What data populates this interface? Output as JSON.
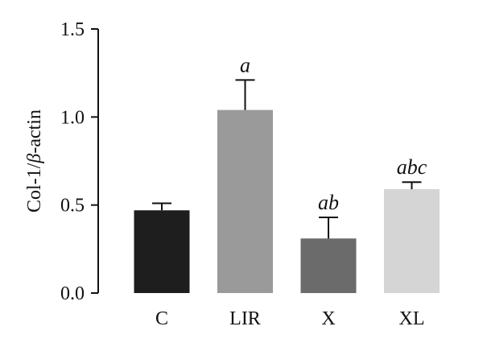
{
  "chart_data": {
    "type": "bar",
    "title": "",
    "xlabel": "",
    "ylabel_prefix": "Col-1/",
    "ylabel_symbol": "β",
    "ylabel_suffix": "-actin",
    "ylim": [
      0,
      1.5
    ],
    "yticks": [
      "0.0",
      "0.5",
      "1.0",
      "1.5"
    ],
    "ytick_values": [
      0.0,
      0.5,
      1.0,
      1.5
    ],
    "grid": false,
    "categories": [
      "C",
      "LIR",
      "X",
      "XL"
    ],
    "values": [
      0.47,
      1.04,
      0.31,
      0.59
    ],
    "errors": [
      0.04,
      0.17,
      0.12,
      0.04
    ],
    "significance": [
      "",
      "a",
      "ab",
      "abc"
    ],
    "colors": [
      "#1e1e1e",
      "#9a9a9a",
      "#6b6b6b",
      "#d5d5d5"
    ]
  }
}
